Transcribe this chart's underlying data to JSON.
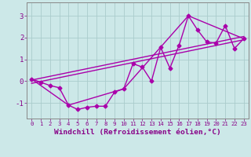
{
  "title": "",
  "xlabel": "Windchill (Refroidissement éolien,°C)",
  "ylabel": "",
  "bg_color": "#cce8e8",
  "line_color": "#aa00aa",
  "grid_color": "#aacccc",
  "axis_color": "#888888",
  "xlim": [
    -0.5,
    23.5
  ],
  "ylim": [
    -1.7,
    3.6
  ],
  "yticks": [
    -1,
    0,
    1,
    2,
    3
  ],
  "xticks": [
    0,
    1,
    2,
    3,
    4,
    5,
    6,
    7,
    8,
    9,
    10,
    11,
    12,
    13,
    14,
    15,
    16,
    17,
    18,
    19,
    20,
    21,
    22,
    23
  ],
  "xtick_labels": [
    "0",
    "1",
    "2",
    "3",
    "4",
    "5",
    "6",
    "7",
    "8",
    "9",
    "10",
    "11",
    "12",
    "13",
    "14",
    "15",
    "16",
    "17",
    "18",
    "19",
    "20",
    "21",
    "22",
    "23"
  ],
  "series": [
    {
      "x": [
        0,
        1,
        2,
        3,
        4,
        5,
        6,
        7,
        8,
        9,
        10,
        11,
        12,
        13,
        14,
        15,
        16,
        17,
        18,
        19,
        20,
        21,
        22,
        23
      ],
      "y": [
        0.1,
        -0.05,
        -0.2,
        -0.3,
        -1.1,
        -1.3,
        -1.2,
        -1.15,
        -1.15,
        -0.5,
        -0.35,
        0.8,
        0.65,
        0.0,
        1.55,
        0.6,
        1.65,
        3.0,
        2.35,
        1.8,
        1.75,
        2.55,
        1.5,
        1.95
      ],
      "marker": "D",
      "markersize": 2.5,
      "linewidth": 1.0,
      "with_markers": true
    },
    {
      "x": [
        0,
        4,
        10,
        17,
        23
      ],
      "y": [
        0.1,
        -1.1,
        -0.35,
        3.0,
        1.95
      ],
      "marker": null,
      "linewidth": 1.0,
      "with_markers": false
    },
    {
      "x": [
        0,
        23
      ],
      "y": [
        -0.1,
        1.9
      ],
      "marker": null,
      "linewidth": 1.0,
      "with_markers": false
    },
    {
      "x": [
        0,
        23
      ],
      "y": [
        0.05,
        2.05
      ],
      "marker": null,
      "linewidth": 1.0,
      "with_markers": false
    }
  ],
  "tick_fontsize": 5.2,
  "xlabel_fontsize": 6.8,
  "ytick_fontsize": 6.5,
  "tick_color": "#880088",
  "label_color": "#880088"
}
